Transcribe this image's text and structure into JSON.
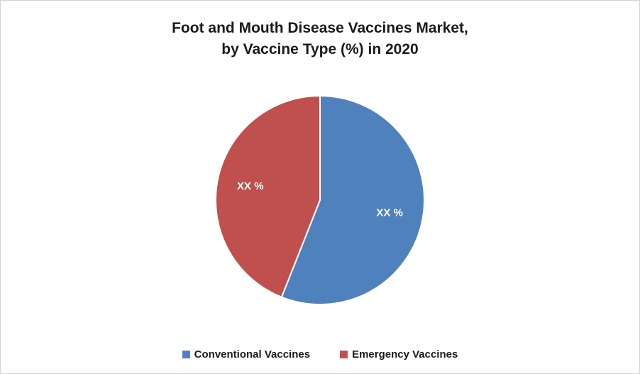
{
  "chart_data": {
    "type": "pie",
    "title": "Foot and Mouth Disease Vaccines Market, by Vaccine Type (%) in 2020",
    "title_lines": [
      "Foot and Mouth Disease Vaccines Market,",
      "by Vaccine Type (%) in 2020"
    ],
    "slices": [
      {
        "name": "Conventional Vaccines",
        "value": 56,
        "label": "XX %",
        "color": "#4F81BD"
      },
      {
        "name": "Emergency Vaccines",
        "value": 44,
        "label": "XX %",
        "color": "#C0504D"
      }
    ],
    "start_angle_deg": 0,
    "direction": "clockwise",
    "legend": {
      "position": "bottom",
      "entries": [
        "Conventional Vaccines",
        "Emergency Vaccines"
      ]
    },
    "background_color": "#ffffff"
  }
}
